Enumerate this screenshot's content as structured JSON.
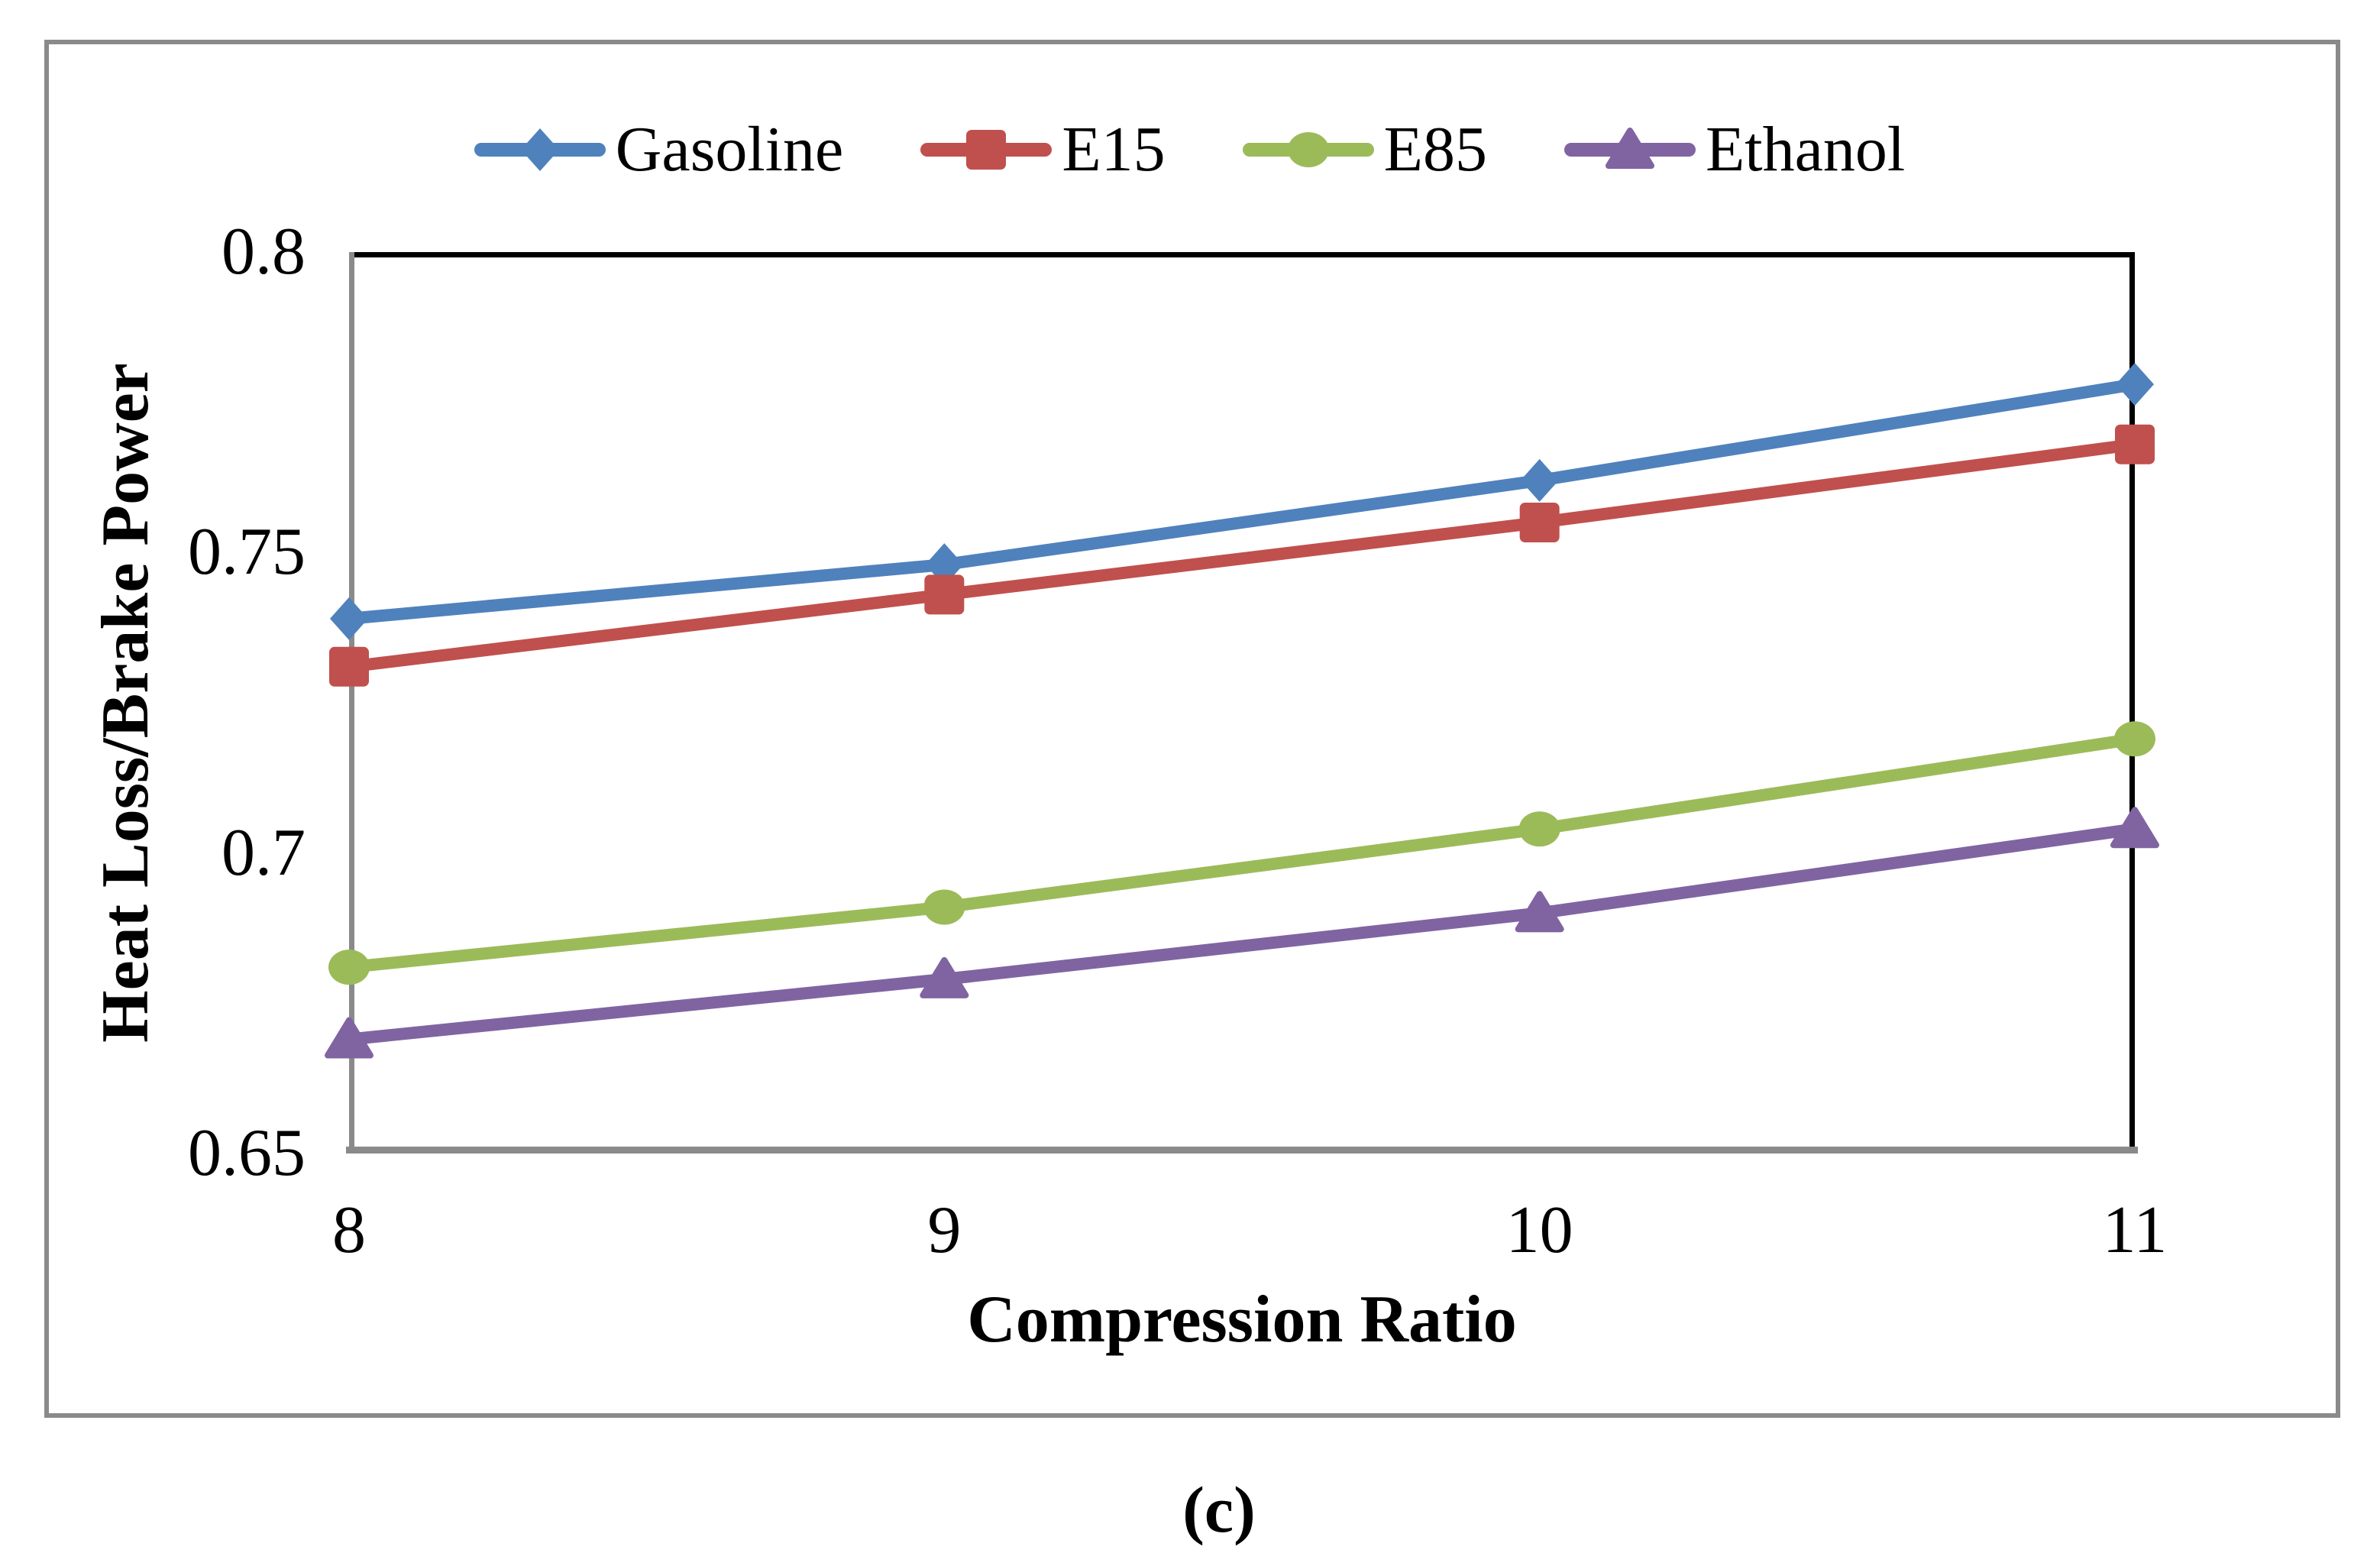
{
  "caption": "(c)",
  "colors": {
    "axis_gray": "#8a8a8a",
    "frame_black": "#000000",
    "background": "#ffffff",
    "text": "#000000"
  },
  "chart_data": {
    "type": "line",
    "title": "",
    "xlabel": "Compression Ratio",
    "ylabel": "Heat Loss/Brake Power",
    "x": [
      8,
      9,
      10,
      11
    ],
    "x_tick_labels": [
      "8",
      "9",
      "10",
      "11"
    ],
    "y_tick_labels": [
      "0.8",
      "0.75",
      "0.7",
      "0.65"
    ],
    "xlim": [
      8,
      11
    ],
    "ylim": [
      0.65,
      0.8
    ],
    "grid": false,
    "legend_position": "top",
    "series": [
      {
        "name": "Gasoline",
        "marker": "diamond",
        "color": "#4F81BD",
        "values": [
          0.739,
          0.748,
          0.762,
          0.778
        ]
      },
      {
        "name": "E15",
        "marker": "square",
        "color": "#C0504D",
        "values": [
          0.731,
          0.743,
          0.755,
          0.768
        ]
      },
      {
        "name": "E85",
        "marker": "circle",
        "color": "#9BBB59",
        "values": [
          0.681,
          0.691,
          0.704,
          0.719
        ]
      },
      {
        "name": "Ethanol",
        "marker": "triangle",
        "color": "#8064A2",
        "values": [
          0.669,
          0.679,
          0.69,
          0.704
        ]
      }
    ]
  }
}
